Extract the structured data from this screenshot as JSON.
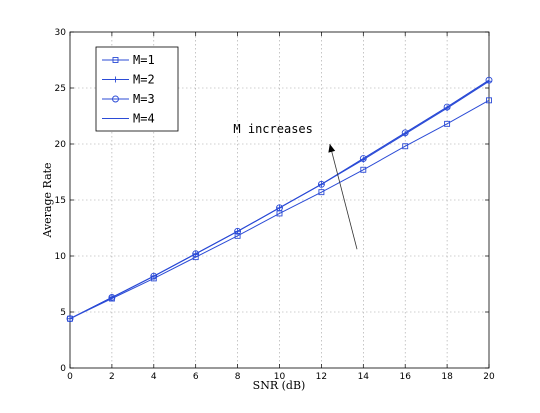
{
  "chart_data": {
    "type": "line",
    "xlabel": "SNR (dB)",
    "ylabel": "Average Rate",
    "xlim": [
      0,
      20
    ],
    "ylim": [
      0,
      30
    ],
    "xticks": [
      0,
      2,
      4,
      6,
      8,
      10,
      12,
      14,
      16,
      18,
      20
    ],
    "yticks": [
      0,
      5,
      10,
      15,
      20,
      25,
      30
    ],
    "grid": true,
    "legend_position": "top-left",
    "x": [
      0,
      2,
      4,
      6,
      8,
      10,
      12,
      14,
      16,
      18,
      20
    ],
    "series": [
      {
        "name": "M=1",
        "marker": "square",
        "values": [
          4.4,
          6.2,
          8.0,
          9.9,
          11.8,
          13.8,
          15.7,
          17.7,
          19.8,
          21.8,
          23.9
        ]
      },
      {
        "name": "M=2",
        "marker": "plus",
        "values": [
          4.4,
          6.3,
          8.2,
          10.2,
          12.2,
          14.3,
          16.4,
          18.6,
          20.9,
          23.2,
          25.6
        ]
      },
      {
        "name": "M=3",
        "marker": "circle",
        "values": [
          4.4,
          6.3,
          8.2,
          10.2,
          12.2,
          14.3,
          16.4,
          18.7,
          21.0,
          23.3,
          25.7
        ]
      },
      {
        "name": "M=4",
        "marker": "none",
        "values": [
          4.4,
          6.3,
          8.2,
          10.2,
          12.2,
          14.3,
          16.4,
          18.7,
          21.0,
          23.3,
          25.7
        ]
      }
    ],
    "annotations": [
      {
        "text": "M increases",
        "arrow_from": [
          13.7,
          10.6
        ],
        "arrow_to": [
          12.4,
          20.0
        ],
        "text_at": [
          7.8,
          21.0
        ]
      }
    ],
    "colors": {
      "line": "#2b4bd6",
      "grid": "#a0a0a0",
      "axis": "#000000"
    }
  }
}
